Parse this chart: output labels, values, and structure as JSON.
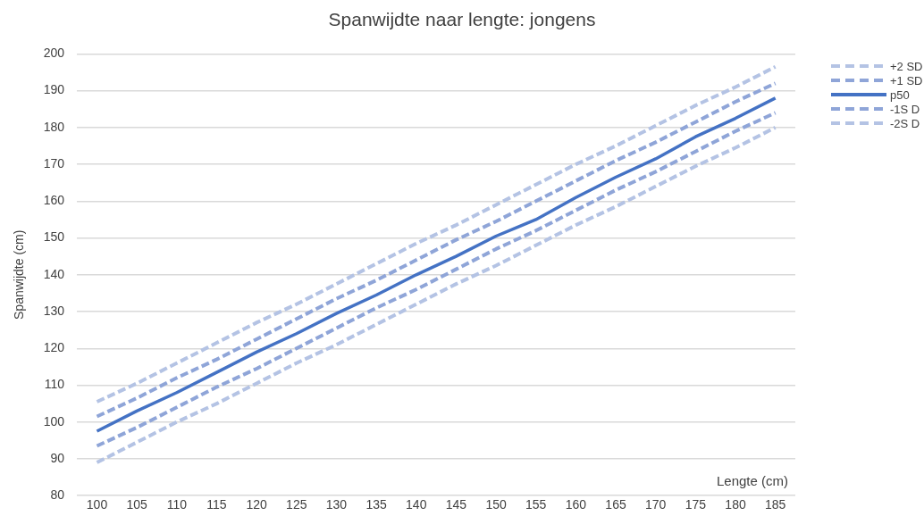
{
  "chart_data": {
    "type": "line",
    "title": "Spanwijdte naar lengte: jongens",
    "xlabel": "Lengte (cm)",
    "ylabel": "Spanwijdte (cm)",
    "categories": [
      "100",
      "105",
      "110",
      "115",
      "120",
      "125",
      "130",
      "135",
      "140",
      "145",
      "150",
      "155",
      "160",
      "165",
      "170",
      "175",
      "180",
      "185"
    ],
    "ylim": [
      80,
      200
    ],
    "yticks": [
      80,
      90,
      100,
      110,
      120,
      130,
      140,
      150,
      160,
      170,
      180,
      190,
      200
    ],
    "grid": "y",
    "legend": "top right",
    "marker": "none",
    "series": [
      {
        "name": "+2 SD",
        "color": "#b4c3e4",
        "line_style": "dashed",
        "values": [
          105.5,
          110.5,
          116,
          121.5,
          127,
          132,
          137.5,
          143,
          148.5,
          153.5,
          159,
          164.5,
          170,
          175,
          180.5,
          186,
          191,
          196.5
        ]
      },
      {
        "name": "+1 SD",
        "color": "#8fa5d8",
        "line_style": "dashed",
        "values": [
          101.5,
          106.5,
          112,
          117,
          122.5,
          128,
          133.5,
          138.5,
          144,
          149.5,
          154.5,
          160,
          165.5,
          171,
          176,
          181.5,
          187,
          192
        ]
      },
      {
        "name": "p50",
        "color": "#4472c4",
        "line_style": "solid",
        "values": [
          97.5,
          103,
          108,
          113.5,
          119,
          124,
          129.5,
          134.5,
          140,
          145,
          150.5,
          155,
          161,
          166.5,
          171.5,
          177.5,
          182.5,
          188
        ]
      },
      {
        "name": "-1S D",
        "color": "#8fa5d8",
        "line_style": "dashed",
        "values": [
          93.5,
          98.5,
          104,
          109.5,
          114.5,
          120,
          125.5,
          131,
          136,
          141.5,
          147,
          152,
          157.5,
          163,
          168,
          173.5,
          179,
          184
        ]
      },
      {
        "name": "-2S D",
        "color": "#b4c3e4",
        "line_style": "dashed",
        "values": [
          89,
          94.5,
          100,
          105,
          110.5,
          116,
          121,
          126.5,
          132,
          137.5,
          142.5,
          148,
          153.5,
          158.5,
          164,
          169.5,
          174.5,
          180
        ]
      }
    ]
  }
}
